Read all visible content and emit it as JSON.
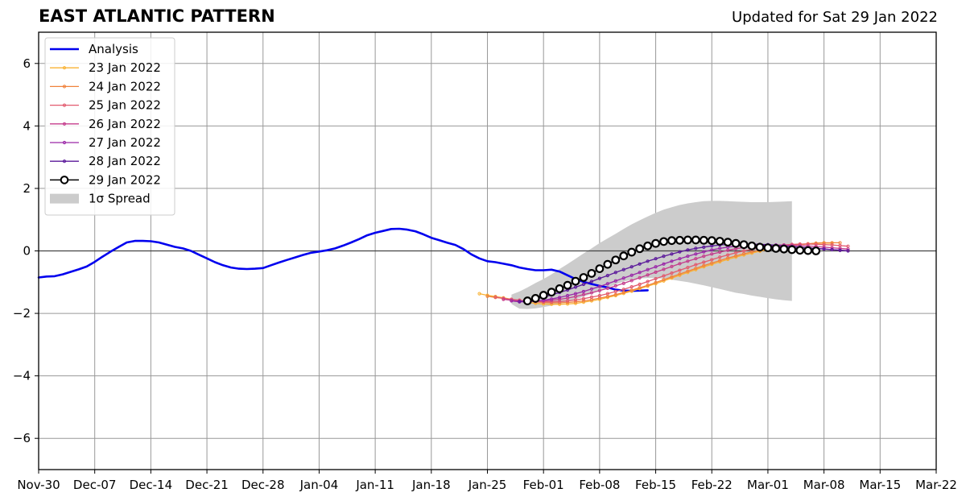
{
  "chart_data": {
    "type": "line",
    "title": "EAST ATLANTIC PATTERN",
    "subtitle": "Updated for Sat 29 Jan 2022",
    "xlabel": "",
    "ylabel": "",
    "xlim": [
      "2021-11-30",
      "2022-03-22"
    ],
    "ylim": [
      -7,
      7
    ],
    "grid": true,
    "legend_position": "upper-left",
    "x_tick_labels": [
      "Nov-30",
      "Dec-07",
      "Dec-14",
      "Dec-21",
      "Dec-28",
      "Jan-04",
      "Jan-11",
      "Jan-18",
      "Jan-25",
      "Feb-01",
      "Feb-08",
      "Feb-15",
      "Feb-22",
      "Mar-01",
      "Mar-08",
      "Mar-15",
      "Mar-22"
    ],
    "x_tick_dates": [
      "2021-11-30",
      "2021-12-07",
      "2021-12-14",
      "2021-12-21",
      "2021-12-28",
      "2022-01-04",
      "2022-01-11",
      "2022-01-18",
      "2022-01-25",
      "2022-02-01",
      "2022-02-08",
      "2022-02-15",
      "2022-02-22",
      "2022-03-01",
      "2022-03-08",
      "2022-03-15",
      "2022-03-22"
    ],
    "y_ticks": [
      -6,
      -4,
      -2,
      0,
      2,
      4,
      6
    ],
    "y_tick_labels": [
      "−6",
      "−4",
      "−2",
      "0",
      "2",
      "4",
      "6"
    ],
    "analysis": {
      "name": "Analysis",
      "color": "#0000ee",
      "start": "2021-11-30",
      "values": [
        -0.85,
        -0.82,
        -0.81,
        -0.75,
        -0.67,
        -0.59,
        -0.5,
        -0.35,
        -0.18,
        -0.02,
        0.13,
        0.27,
        0.32,
        0.32,
        0.31,
        0.27,
        0.2,
        0.13,
        0.08,
        0.0,
        -0.12,
        -0.24,
        -0.36,
        -0.46,
        -0.53,
        -0.57,
        -0.58,
        -0.57,
        -0.55,
        -0.46,
        -0.37,
        -0.29,
        -0.21,
        -0.13,
        -0.06,
        -0.02,
        0.02,
        0.08,
        0.17,
        0.27,
        0.38,
        0.5,
        0.58,
        0.64,
        0.7,
        0.71,
        0.68,
        0.63,
        0.53,
        0.42,
        0.34,
        0.26,
        0.19,
        0.06,
        -0.11,
        -0.24,
        -0.33,
        -0.36,
        -0.41,
        -0.46,
        -0.53,
        -0.58,
        -0.62,
        -0.62,
        -0.6,
        -0.66,
        -0.78,
        -0.9,
        -0.99,
        -1.06,
        -1.12,
        -1.17,
        -1.24,
        -1.27,
        -1.28,
        -1.27,
        -1.26
      ]
    },
    "spread": {
      "name": "1σ Spread",
      "color": "#cccccc",
      "start": "2022-01-28",
      "upper": [
        -1.4,
        -1.3,
        -1.17,
        -1.03,
        -0.9,
        -0.75,
        -0.58,
        -0.42,
        -0.25,
        -0.08,
        0.08,
        0.25,
        0.4,
        0.55,
        0.7,
        0.85,
        0.98,
        1.1,
        1.22,
        1.32,
        1.4,
        1.47,
        1.52,
        1.56,
        1.59,
        1.6,
        1.6,
        1.59,
        1.58,
        1.57,
        1.56,
        1.56,
        1.56,
        1.57,
        1.58,
        1.59
      ],
      "lower": [
        -1.7,
        -1.85,
        -1.86,
        -1.84,
        -1.8,
        -1.75,
        -1.7,
        -1.63,
        -1.55,
        -1.46,
        -1.37,
        -1.27,
        -1.17,
        -1.07,
        -0.98,
        -0.92,
        -0.88,
        -0.87,
        -0.87,
        -0.89,
        -0.92,
        -0.96,
        -1.0,
        -1.05,
        -1.1,
        -1.16,
        -1.22,
        -1.28,
        -1.34,
        -1.38,
        -1.43,
        -1.47,
        -1.51,
        -1.55,
        -1.58,
        -1.6
      ]
    },
    "forecasts": [
      {
        "name": "23 Jan 2022",
        "color": "#f9b233",
        "start": "2022-01-24",
        "values": [
          -1.37,
          -1.42,
          -1.46,
          -1.5,
          -1.55,
          -1.6,
          -1.64,
          -1.68,
          -1.7,
          -1.71,
          -1.71,
          -1.7,
          -1.68,
          -1.64,
          -1.6,
          -1.55,
          -1.49,
          -1.43,
          -1.36,
          -1.29,
          -1.21,
          -1.13,
          -1.05,
          -0.96,
          -0.87,
          -0.78,
          -0.69,
          -0.6,
          -0.51,
          -0.43,
          -0.35,
          -0.27,
          -0.2,
          -0.13,
          -0.07,
          -0.01,
          0.04,
          0.09,
          0.13,
          0.17,
          0.2,
          0.22,
          0.24,
          0.25,
          0.25
        ]
      },
      {
        "name": "24 Jan 2022",
        "color": "#f0823c",
        "start": "2022-01-25",
        "values": [
          -1.45,
          -1.49,
          -1.52,
          -1.55,
          -1.58,
          -1.61,
          -1.63,
          -1.65,
          -1.66,
          -1.66,
          -1.65,
          -1.63,
          -1.6,
          -1.56,
          -1.51,
          -1.46,
          -1.4,
          -1.33,
          -1.26,
          -1.18,
          -1.1,
          -1.01,
          -0.92,
          -0.83,
          -0.74,
          -0.65,
          -0.56,
          -0.47,
          -0.39,
          -0.31,
          -0.23,
          -0.16,
          -0.09,
          -0.03,
          0.02,
          0.07,
          0.11,
          0.15,
          0.18,
          0.21,
          0.23,
          0.25,
          0.26,
          0.26,
          0.26
        ]
      },
      {
        "name": "25 Jan 2022",
        "color": "#e25a6e",
        "start": "2022-01-26",
        "values": [
          -1.48,
          -1.52,
          -1.55,
          -1.58,
          -1.6,
          -1.62,
          -1.63,
          -1.63,
          -1.62,
          -1.6,
          -1.57,
          -1.53,
          -1.48,
          -1.43,
          -1.37,
          -1.3,
          -1.23,
          -1.15,
          -1.07,
          -0.98,
          -0.89,
          -0.8,
          -0.71,
          -0.62,
          -0.53,
          -0.44,
          -0.36,
          -0.28,
          -0.2,
          -0.13,
          -0.06,
          0.0,
          0.05,
          0.1,
          0.14,
          0.17,
          0.19,
          0.21,
          0.22,
          0.22,
          0.21,
          0.2,
          0.19,
          0.17,
          0.15
        ]
      },
      {
        "name": "26 Jan 2022",
        "color": "#c43c8c",
        "start": "2022-01-27",
        "values": [
          -1.55,
          -1.58,
          -1.6,
          -1.61,
          -1.61,
          -1.6,
          -1.58,
          -1.55,
          -1.51,
          -1.46,
          -1.4,
          -1.34,
          -1.27,
          -1.2,
          -1.12,
          -1.04,
          -0.95,
          -0.86,
          -0.77,
          -0.68,
          -0.59,
          -0.5,
          -0.41,
          -0.33,
          -0.25,
          -0.17,
          -0.1,
          -0.04,
          0.02,
          0.07,
          0.11,
          0.14,
          0.16,
          0.18,
          0.19,
          0.19,
          0.18,
          0.17,
          0.16,
          0.14,
          0.12,
          0.1,
          0.08,
          0.06
        ]
      },
      {
        "name": "27 Jan 2022",
        "color": "#9a28a8",
        "start": "2022-01-28",
        "values": [
          -1.6,
          -1.63,
          -1.63,
          -1.61,
          -1.58,
          -1.54,
          -1.49,
          -1.43,
          -1.37,
          -1.3,
          -1.22,
          -1.14,
          -1.05,
          -0.96,
          -0.87,
          -0.78,
          -0.69,
          -0.6,
          -0.51,
          -0.42,
          -0.33,
          -0.25,
          -0.17,
          -0.1,
          -0.03,
          0.03,
          0.08,
          0.12,
          0.15,
          0.17,
          0.18,
          0.18,
          0.18,
          0.17,
          0.16,
          0.14,
          0.12,
          0.1,
          0.08,
          0.06,
          0.04,
          0.02,
          0.01
        ]
      },
      {
        "name": "28 Jan 2022",
        "color": "#5a189a",
        "start": "2022-01-29",
        "values": [
          -1.62,
          -1.6,
          -1.55,
          -1.48,
          -1.41,
          -1.33,
          -1.25,
          -1.16,
          -1.07,
          -0.98,
          -0.88,
          -0.79,
          -0.69,
          -0.6,
          -0.51,
          -0.42,
          -0.33,
          -0.25,
          -0.17,
          -0.1,
          -0.03,
          0.03,
          0.08,
          0.12,
          0.16,
          0.19,
          0.21,
          0.22,
          0.22,
          0.22,
          0.21,
          0.2,
          0.18,
          0.16,
          0.14,
          0.12,
          0.1,
          0.08,
          0.06,
          0.04,
          0.02,
          0.0
        ]
      },
      {
        "name": "29 Jan 2022",
        "color": "#000000",
        "start": "2022-01-30",
        "values": [
          -1.6,
          -1.52,
          -1.42,
          -1.32,
          -1.21,
          -1.1,
          -0.97,
          -0.85,
          -0.72,
          -0.57,
          -0.43,
          -0.29,
          -0.16,
          -0.04,
          0.07,
          0.16,
          0.24,
          0.3,
          0.33,
          0.34,
          0.35,
          0.35,
          0.34,
          0.33,
          0.31,
          0.28,
          0.24,
          0.2,
          0.16,
          0.12,
          0.1,
          0.08,
          0.06,
          0.04,
          0.02,
          0.01,
          0.0
        ]
      }
    ]
  }
}
